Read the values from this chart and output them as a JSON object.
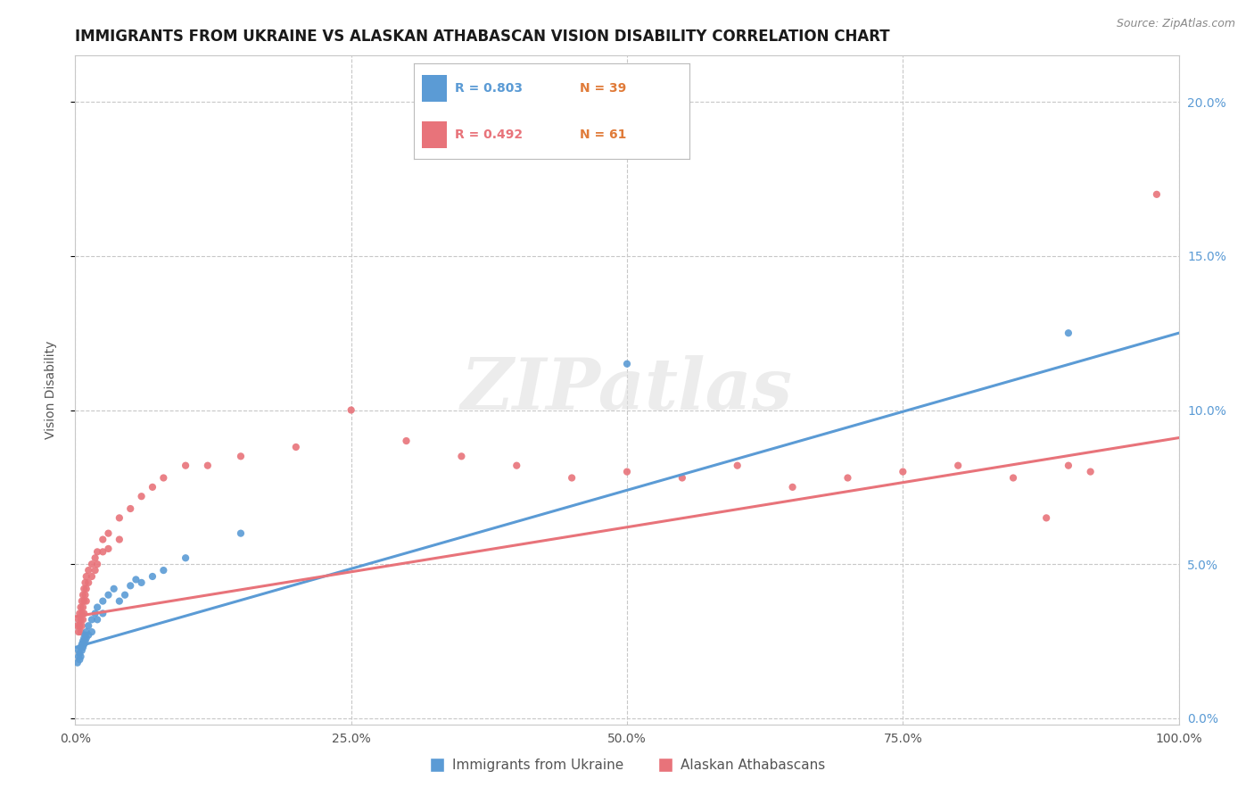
{
  "title": "IMMIGRANTS FROM UKRAINE VS ALASKAN ATHABASCAN VISION DISABILITY CORRELATION CHART",
  "source": "Source: ZipAtlas.com",
  "ylabel": "Vision Disability",
  "ytick_vals": [
    0.0,
    0.05,
    0.1,
    0.15,
    0.2
  ],
  "xlim": [
    0,
    1.0
  ],
  "ylim": [
    -0.002,
    0.215
  ],
  "watermark_text": "ZIPatlas",
  "legend_R1": "R = 0.803",
  "legend_N1": "N = 39",
  "legend_R2": "R = 0.492",
  "legend_N2": "N = 61",
  "legend_label1": "Immigrants from Ukraine",
  "legend_label2": "Alaskan Athabascans",
  "blue_color": "#5b9bd5",
  "pink_color": "#e8737a",
  "orange_color": "#e07b39",
  "blue_scatter": [
    [
      0.002,
      0.018
    ],
    [
      0.003,
      0.02
    ],
    [
      0.003,
      0.022
    ],
    [
      0.004,
      0.019
    ],
    [
      0.004,
      0.021
    ],
    [
      0.005,
      0.023
    ],
    [
      0.005,
      0.02
    ],
    [
      0.006,
      0.022
    ],
    [
      0.006,
      0.024
    ],
    [
      0.007,
      0.025
    ],
    [
      0.007,
      0.023
    ],
    [
      0.008,
      0.026
    ],
    [
      0.008,
      0.024
    ],
    [
      0.009,
      0.027
    ],
    [
      0.009,
      0.025
    ],
    [
      0.01,
      0.028
    ],
    [
      0.01,
      0.026
    ],
    [
      0.012,
      0.03
    ],
    [
      0.012,
      0.027
    ],
    [
      0.015,
      0.032
    ],
    [
      0.015,
      0.028
    ],
    [
      0.018,
      0.034
    ],
    [
      0.02,
      0.036
    ],
    [
      0.02,
      0.032
    ],
    [
      0.025,
      0.038
    ],
    [
      0.025,
      0.034
    ],
    [
      0.03,
      0.04
    ],
    [
      0.035,
      0.042
    ],
    [
      0.04,
      0.038
    ],
    [
      0.045,
      0.04
    ],
    [
      0.05,
      0.043
    ],
    [
      0.055,
      0.045
    ],
    [
      0.06,
      0.044
    ],
    [
      0.07,
      0.046
    ],
    [
      0.08,
      0.048
    ],
    [
      0.1,
      0.052
    ],
    [
      0.15,
      0.06
    ],
    [
      0.5,
      0.115
    ],
    [
      0.9,
      0.125
    ]
  ],
  "pink_scatter": [
    [
      0.002,
      0.03
    ],
    [
      0.003,
      0.032
    ],
    [
      0.003,
      0.028
    ],
    [
      0.004,
      0.034
    ],
    [
      0.004,
      0.03
    ],
    [
      0.005,
      0.036
    ],
    [
      0.005,
      0.032
    ],
    [
      0.005,
      0.028
    ],
    [
      0.006,
      0.038
    ],
    [
      0.006,
      0.034
    ],
    [
      0.006,
      0.03
    ],
    [
      0.007,
      0.04
    ],
    [
      0.007,
      0.036
    ],
    [
      0.007,
      0.032
    ],
    [
      0.008,
      0.042
    ],
    [
      0.008,
      0.038
    ],
    [
      0.008,
      0.034
    ],
    [
      0.009,
      0.044
    ],
    [
      0.009,
      0.04
    ],
    [
      0.01,
      0.046
    ],
    [
      0.01,
      0.042
    ],
    [
      0.01,
      0.038
    ],
    [
      0.012,
      0.048
    ],
    [
      0.012,
      0.044
    ],
    [
      0.015,
      0.05
    ],
    [
      0.015,
      0.046
    ],
    [
      0.018,
      0.052
    ],
    [
      0.018,
      0.048
    ],
    [
      0.02,
      0.054
    ],
    [
      0.02,
      0.05
    ],
    [
      0.025,
      0.058
    ],
    [
      0.025,
      0.054
    ],
    [
      0.03,
      0.06
    ],
    [
      0.03,
      0.055
    ],
    [
      0.04,
      0.065
    ],
    [
      0.04,
      0.058
    ],
    [
      0.05,
      0.068
    ],
    [
      0.06,
      0.072
    ],
    [
      0.07,
      0.075
    ],
    [
      0.08,
      0.078
    ],
    [
      0.1,
      0.082
    ],
    [
      0.12,
      0.082
    ],
    [
      0.15,
      0.085
    ],
    [
      0.2,
      0.088
    ],
    [
      0.25,
      0.1
    ],
    [
      0.3,
      0.09
    ],
    [
      0.35,
      0.085
    ],
    [
      0.4,
      0.082
    ],
    [
      0.45,
      0.078
    ],
    [
      0.5,
      0.08
    ],
    [
      0.55,
      0.078
    ],
    [
      0.6,
      0.082
    ],
    [
      0.65,
      0.075
    ],
    [
      0.7,
      0.078
    ],
    [
      0.75,
      0.08
    ],
    [
      0.8,
      0.082
    ],
    [
      0.85,
      0.078
    ],
    [
      0.88,
      0.065
    ],
    [
      0.9,
      0.082
    ],
    [
      0.92,
      0.08
    ],
    [
      0.98,
      0.17
    ]
  ],
  "blue_line": [
    [
      0.0,
      0.023
    ],
    [
      1.0,
      0.125
    ]
  ],
  "pink_line": [
    [
      0.0,
      0.033
    ],
    [
      1.0,
      0.091
    ]
  ],
  "background_color": "#ffffff",
  "grid_color": "#c8c8c8",
  "title_fontsize": 12,
  "axis_fontsize": 10,
  "tick_fontsize": 10
}
